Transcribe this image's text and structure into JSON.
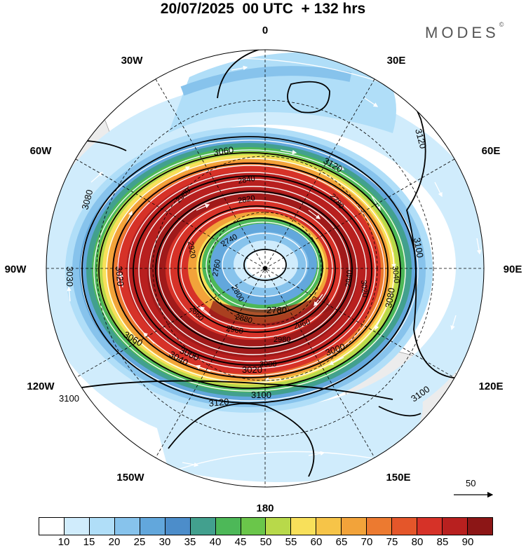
{
  "title": "20/07/2025  00 UTC  + 132 hrs",
  "brand": "MODES",
  "brand_mark": "©",
  "longitude_labels": [
    "0",
    "30E",
    "60E",
    "90E",
    "120E",
    "150E",
    "180",
    "150W",
    "120W",
    "90W",
    "60W",
    "30W"
  ],
  "contour_labels": [
    "3120",
    "3100",
    "3080",
    "3060",
    "3040",
    "3020",
    "3000",
    "2980",
    "2960",
    "2940",
    "2920",
    "2900",
    "2880",
    "2860",
    "2840",
    "2820",
    "2800",
    "2780",
    "2760",
    "2740",
    "3100",
    "3120",
    "3100",
    "3080",
    "3030",
    "3020",
    "3000",
    "3060",
    "3040",
    "3020",
    "3000",
    "3100",
    "3120",
    "2780",
    "2960"
  ],
  "reference_vector": {
    "value": "50",
    "icon": "arrow-right-icon"
  },
  "colorbar": {
    "ticks": [
      "10",
      "15",
      "20",
      "25",
      "30",
      "35",
      "40",
      "45",
      "50",
      "55",
      "60",
      "65",
      "70",
      "75",
      "80",
      "85",
      "90"
    ],
    "colors": [
      "#ffffff",
      "#d0ecfc",
      "#b0def8",
      "#87c3ec",
      "#62a7dc",
      "#4c8dca",
      "#42a08e",
      "#4db858",
      "#6ac64a",
      "#b8d94a",
      "#f8e05a",
      "#f6c448",
      "#f2a33a",
      "#ec7a30",
      "#e4562a",
      "#d63228",
      "#b8201f",
      "#8c1616"
    ]
  }
}
